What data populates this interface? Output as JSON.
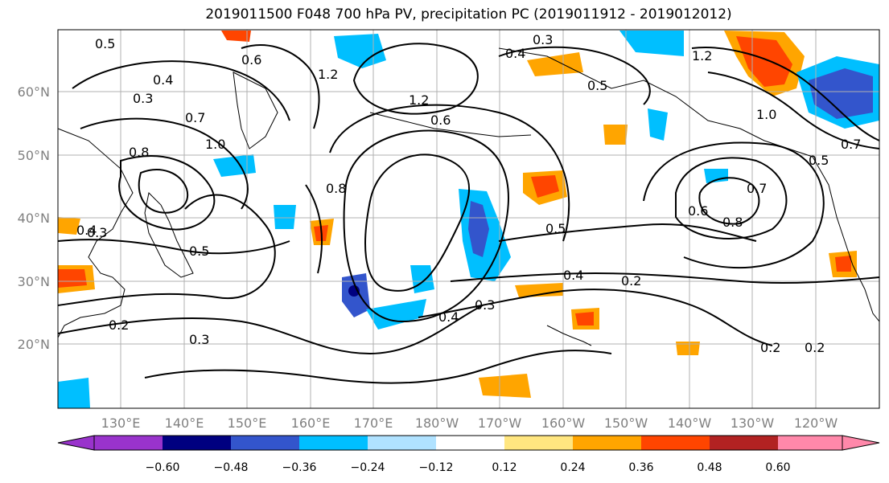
{
  "title": "2019011500 F048 700 hPa PV, precipitation PC (2019011912 - 2019012012)",
  "lat_labels": [
    "60°N",
    "50°N",
    "40°N",
    "30°N",
    "20°N"
  ],
  "lon_labels": [
    "130°E",
    "140°E",
    "150°E",
    "160°E",
    "170°E",
    "180°W",
    "170°W",
    "160°W",
    "150°W",
    "140°W",
    "130°W",
    "120°W"
  ],
  "colorbar": {
    "ticks": [
      "−0.60",
      "−0.48",
      "−0.36",
      "−0.24",
      "−0.12",
      "0.12",
      "0.24",
      "0.36",
      "0.48",
      "0.60"
    ],
    "colors": [
      "#9933cc",
      "#000080",
      "#3355cc",
      "#00bfff",
      "#b0e2ff",
      "#ffffff",
      "#ffe680",
      "#ffa500",
      "#ff4500",
      "#b22222",
      "#ff88aa"
    ]
  },
  "contour_labels": [
    "0.5",
    "0.4",
    "0.3",
    "0.7",
    "1.0",
    "0.8",
    "1.2",
    "0.6",
    "0.3",
    "0.4",
    "0.5",
    "0.8",
    "1.2",
    "0.6",
    "0.2",
    "0.3",
    "0.5",
    "0.4",
    "0.3",
    "0.2",
    "0.2",
    "0.8",
    "0.6",
    "0.7",
    "1.2",
    "0.5",
    "0.4",
    "0.3",
    "0.2",
    "0.4",
    "0.5",
    "1.0",
    "0.7"
  ]
}
